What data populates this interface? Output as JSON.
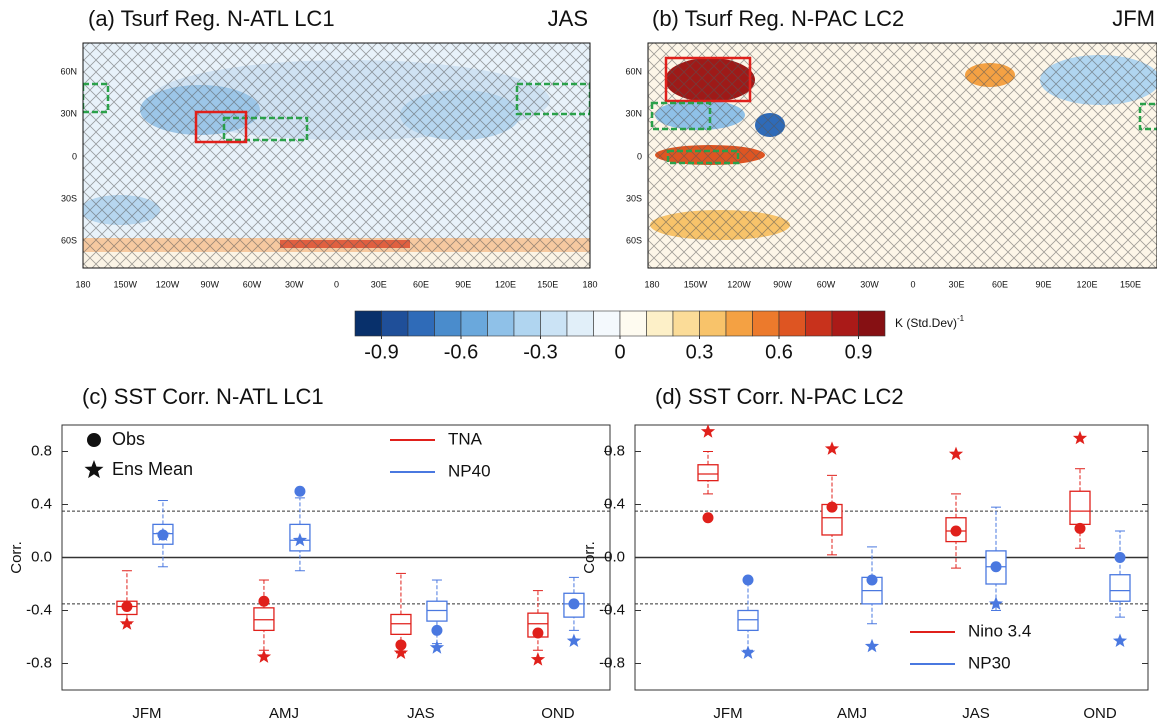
{
  "chart_data": [
    {
      "type": "map",
      "title": "(a) Tsurf Reg. N-ATL LC1",
      "season": "JAS",
      "lon_labels": [
        "180",
        "150W",
        "120W",
        "90W",
        "60W",
        "30W",
        "0",
        "30E",
        "60E",
        "90E",
        "120E",
        "150E",
        "180"
      ],
      "lat_labels": [
        "60N",
        "30N",
        "0",
        "30S",
        "60S"
      ]
    },
    {
      "type": "map",
      "title": "(b) Tsurf Reg. N-PAC LC2",
      "season": "JFM",
      "lon_labels": [
        "180",
        "150W",
        "120W",
        "90W",
        "60W",
        "30W",
        "0",
        "30E",
        "60E",
        "90E",
        "120E",
        "150E",
        "180"
      ],
      "lat_labels": [
        "60N",
        "30N",
        "0",
        "30S",
        "60S"
      ]
    },
    {
      "type": "colorbar",
      "label": "K (Std.Dev)",
      "label_exponent": "-1",
      "clim": [
        -1,
        1
      ],
      "ticks": [
        -0.9,
        -0.6,
        -0.3,
        0,
        0.3,
        0.6,
        0.9
      ],
      "colors": [
        "#08306b",
        "#1f4f99",
        "#2f6bb8",
        "#4a8ccc",
        "#6aa8dc",
        "#8fc1e8",
        "#b0d5f0",
        "#cbe3f5",
        "#e1eff9",
        "#f4f9fd",
        "#fefbf0",
        "#fdf0c8",
        "#fbdc98",
        "#f8c36a",
        "#f4a143",
        "#ec7a2c",
        "#de5522",
        "#c8321c",
        "#aa1a18",
        "#861013"
      ]
    },
    {
      "type": "box",
      "title": "(c) SST Corr. N-ATL LC1",
      "ylabel": "Corr.",
      "categories": [
        "JFM",
        "AMJ",
        "JAS",
        "OND"
      ],
      "ylim": [
        -1,
        1
      ],
      "yticks": [
        0.8,
        0.4,
        {
          "value": 0,
          "label": "0.0"
        },
        -0.4,
        -0.8
      ],
      "significance": [
        0.35,
        -0.35
      ],
      "marker_legend": [
        "Obs",
        "Ens Mean"
      ],
      "series": [
        {
          "name": "TNA",
          "color": "#e0201b",
          "whisker_low": [
            -0.5,
            -0.7,
            -0.72,
            -0.7
          ],
          "q1": [
            -0.43,
            -0.55,
            -0.58,
            -0.6
          ],
          "median": [
            -0.37,
            -0.47,
            -0.5,
            -0.5
          ],
          "q3": [
            -0.33,
            -0.38,
            -0.43,
            -0.42
          ],
          "whisker_high": [
            -0.1,
            -0.17,
            -0.12,
            -0.25
          ],
          "obs": [
            -0.37,
            -0.33,
            -0.66,
            -0.57
          ],
          "ens_mean": [
            -0.5,
            -0.75,
            -0.72,
            -0.77
          ]
        },
        {
          "name": "NP40",
          "color": "#4a78e0",
          "whisker_low": [
            -0.07,
            -0.1,
            -0.65,
            -0.55
          ],
          "q1": [
            0.1,
            0.05,
            -0.48,
            -0.45
          ],
          "median": [
            0.18,
            0.13,
            -0.4,
            -0.35
          ],
          "q3": [
            0.25,
            0.25,
            -0.33,
            -0.27
          ],
          "whisker_high": [
            0.43,
            0.45,
            -0.17,
            -0.15
          ],
          "obs": [
            0.17,
            0.5,
            -0.55,
            -0.35
          ],
          "ens_mean": [
            0.17,
            0.13,
            -0.68,
            -0.63
          ]
        }
      ]
    },
    {
      "type": "box",
      "title": "(d) SST Corr. N-PAC LC2",
      "ylabel": "Corr.",
      "categories": [
        "JFM",
        "AMJ",
        "JAS",
        "OND"
      ],
      "ylim": [
        -1,
        1
      ],
      "yticks": [
        0.8,
        0.4,
        {
          "value": 0,
          "label": "0.0"
        },
        -0.4,
        -0.8
      ],
      "significance": [
        0.35,
        -0.35
      ],
      "series": [
        {
          "name": "Nino 3.4",
          "color": "#e0201b",
          "whisker_low": [
            0.48,
            0.02,
            -0.08,
            0.07
          ],
          "q1": [
            0.58,
            0.17,
            0.12,
            0.25
          ],
          "median": [
            0.63,
            0.3,
            0.2,
            0.35
          ],
          "q3": [
            0.7,
            0.4,
            0.3,
            0.5
          ],
          "whisker_high": [
            0.8,
            0.62,
            0.48,
            0.67
          ],
          "obs": [
            0.3,
            0.38,
            0.2,
            0.22
          ],
          "ens_mean": [
            0.95,
            0.82,
            0.78,
            0.9
          ]
        },
        {
          "name": "NP30",
          "color": "#4a78e0",
          "whisker_low": [
            -0.7,
            -0.5,
            -0.4,
            -0.45
          ],
          "q1": [
            -0.55,
            -0.35,
            -0.2,
            -0.33
          ],
          "median": [
            -0.47,
            -0.25,
            -0.07,
            -0.25
          ],
          "q3": [
            -0.4,
            -0.15,
            0.05,
            -0.13
          ],
          "whisker_high": [
            -0.17,
            0.08,
            0.38,
            0.2
          ],
          "obs": [
            -0.17,
            -0.17,
            -0.07,
            0.0
          ],
          "ens_mean": [
            -0.72,
            -0.67,
            -0.35,
            -0.63
          ]
        }
      ]
    }
  ]
}
